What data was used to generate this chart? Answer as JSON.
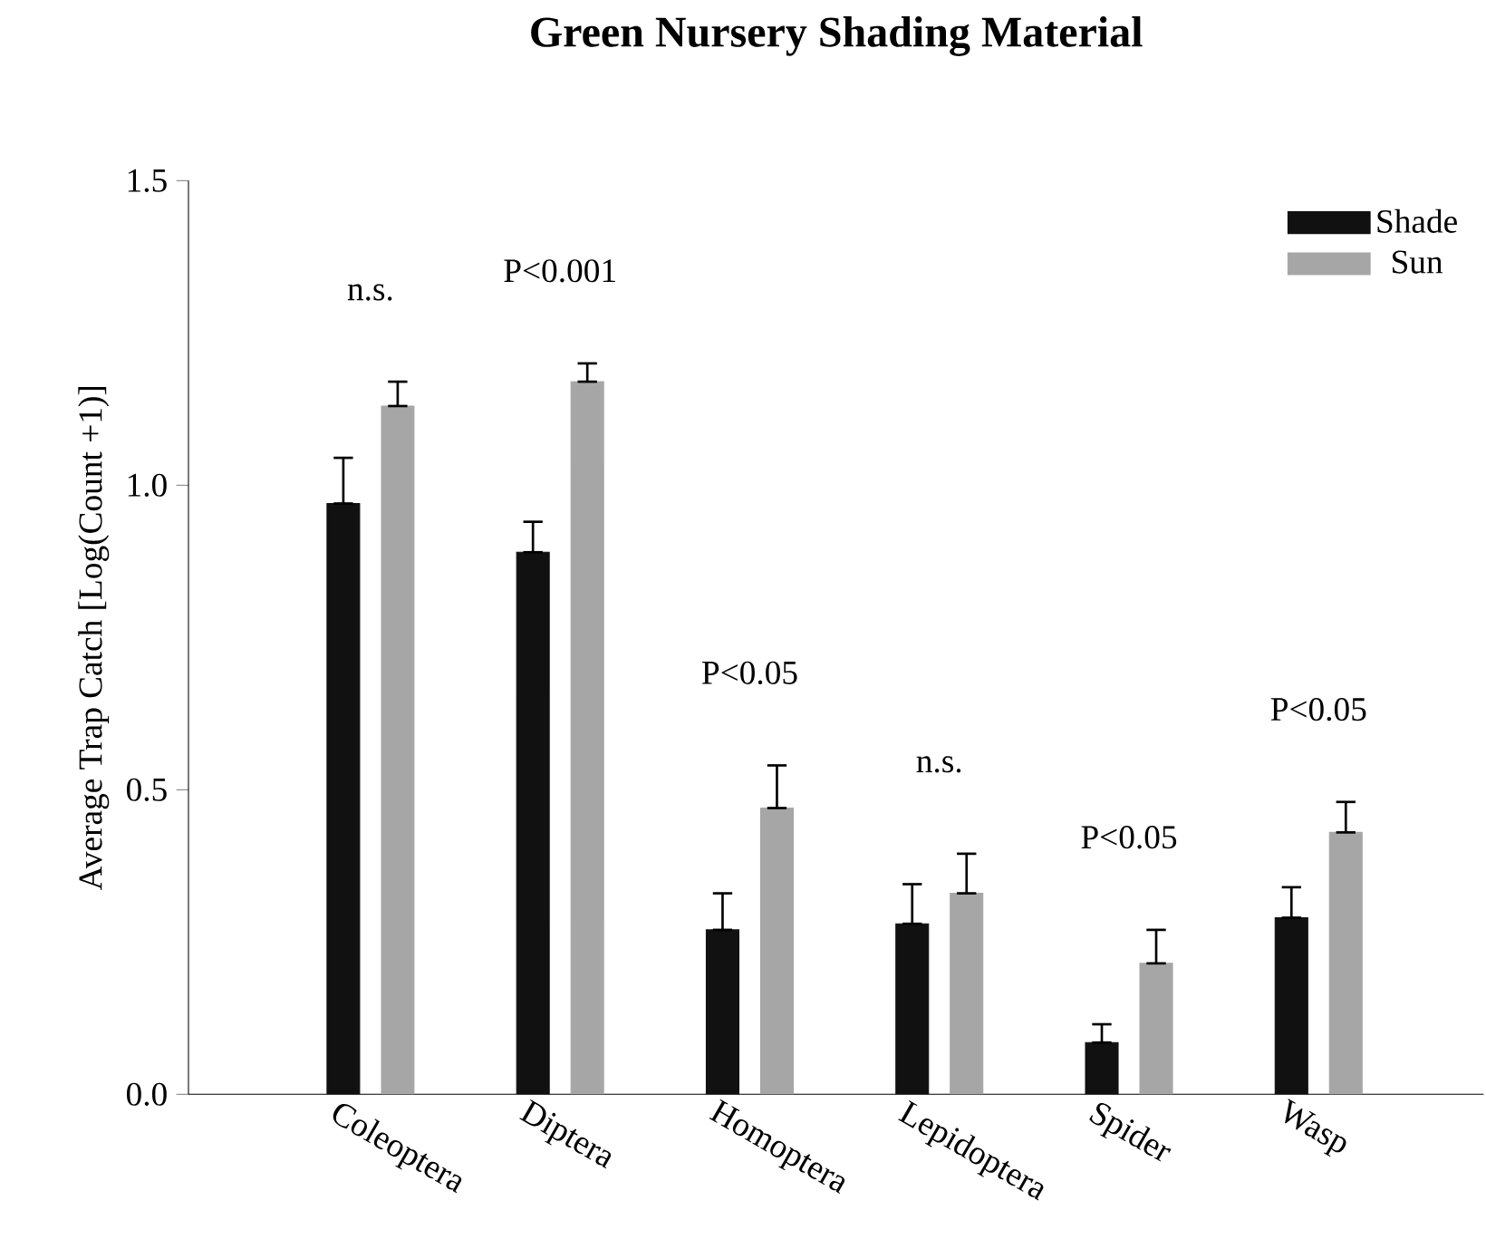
{
  "chart_data": {
    "type": "bar",
    "title": "Green Nursery Shading Material",
    "ylabel": "Average Trap Catch [Log(Count +1)]",
    "categories": [
      "Coleoptera",
      "Diptera",
      "Homoptera",
      "Lepidoptera",
      "Spider",
      "Wasp"
    ],
    "series": [
      {
        "name": "Shade",
        "color": "#111111",
        "values": [
          0.97,
          0.89,
          0.27,
          0.28,
          0.085,
          0.29
        ],
        "errors": [
          [
            0.97,
            1.045
          ],
          [
            0.89,
            0.94
          ],
          [
            0.27,
            0.33
          ],
          [
            0.28,
            0.345
          ],
          [
            0.085,
            0.115
          ],
          [
            0.29,
            0.34
          ]
        ]
      },
      {
        "name": "Sun",
        "color": "#a6a6a6",
        "values": [
          1.13,
          1.17,
          0.47,
          0.33,
          0.215,
          0.43
        ],
        "errors": [
          [
            1.13,
            1.17
          ],
          [
            1.17,
            1.2
          ],
          [
            0.47,
            0.54
          ],
          [
            0.33,
            0.395
          ],
          [
            0.215,
            0.27
          ],
          [
            0.43,
            0.48
          ]
        ]
      }
    ],
    "ylim": [
      0,
      1.5
    ],
    "yticks": [
      {
        "value": 0,
        "label": "0.0"
      },
      0.5,
      {
        "value": 1,
        "label": "1.0"
      },
      1.5
    ],
    "legend": "top right",
    "grid": false,
    "annotations": [
      "n.s.",
      "P<0.001",
      "P<0.05",
      "n.s.",
      "P<0.05",
      "P<0.05"
    ]
  }
}
